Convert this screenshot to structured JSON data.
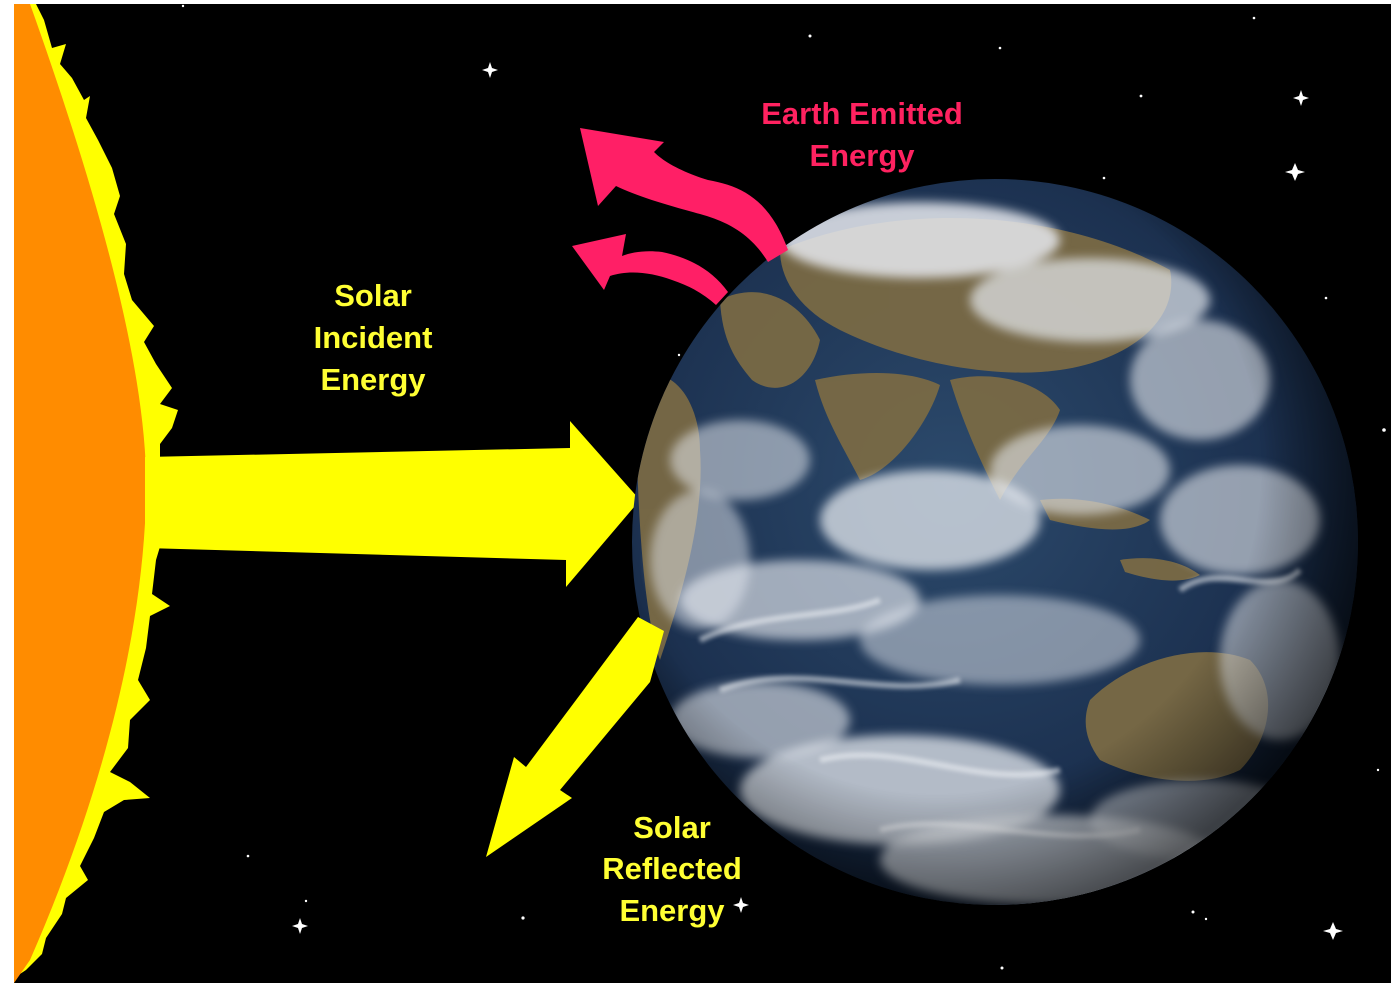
{
  "labels": {
    "earth_emitted_line1": "Earth Emitted",
    "earth_emitted_line2": "Energy",
    "solar_incident_line1": "Solar",
    "solar_incident_line2": "Incident",
    "solar_incident_line3": "Energy",
    "solar_reflected_line1": "Solar",
    "solar_reflected_line2": "Reflected",
    "solar_reflected_line3": "Energy"
  },
  "colors": {
    "space": "#000000",
    "border": "#ffffff",
    "sun_body": "#ff8c00",
    "sun_corona": "#ffff00",
    "solar_arrow": "#ffff00",
    "emitted_arrow": "#ff1f66",
    "solar_label": "#ffff33",
    "emitted_label": "#ff2260",
    "star": "#ffffff",
    "ocean": "#1f3553",
    "land": "#7a6a45",
    "cloud": "#e6e9ef"
  },
  "icons": {
    "sun": "sun-icon",
    "earth": "earth-globe-icon",
    "star": "star-icon"
  }
}
